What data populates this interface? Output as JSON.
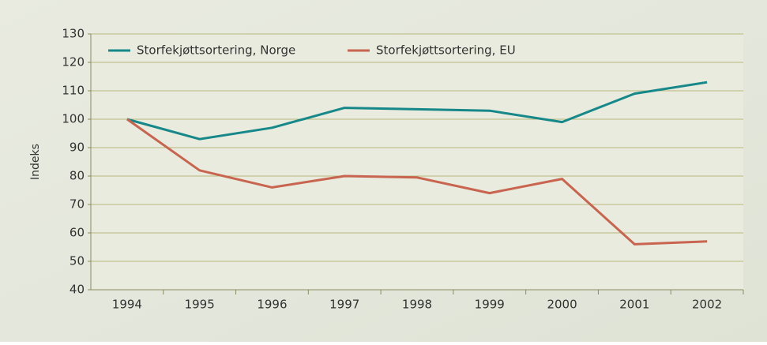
{
  "chart_data": {
    "type": "line",
    "y_label": "Indeks",
    "categories": [
      "1994",
      "1995",
      "1996",
      "1997",
      "1998",
      "1999",
      "2000",
      "2001",
      "2002"
    ],
    "series": [
      {
        "name": "Storfekjøttsortering, Norge",
        "color": "#17888a",
        "values": [
          100,
          93,
          97,
          104,
          103.5,
          103,
          99,
          109,
          113
        ]
      },
      {
        "name": "Storfekjøttsortering, EU",
        "color": "#c8644f",
        "values": [
          100,
          82,
          76,
          80,
          79.5,
          74,
          79,
          56,
          57
        ]
      }
    ],
    "ylim": [
      40,
      130
    ],
    "yticks": [
      40,
      50,
      60,
      70,
      80,
      90,
      100,
      110,
      120,
      130
    ],
    "grid": true,
    "legend": "top"
  }
}
